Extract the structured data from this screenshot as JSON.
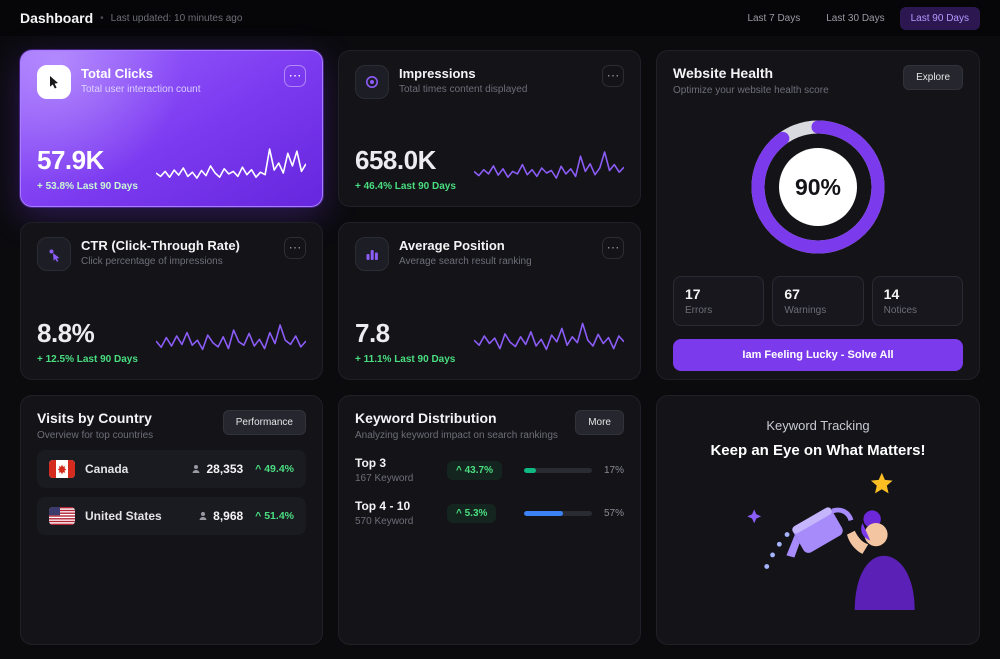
{
  "colors": {
    "accent": "#7c3aed",
    "accent_light": "#a78bfa",
    "positive": "#4ade80",
    "spark": "#8b5cf6",
    "spark_highlight": "#ffffff"
  },
  "icons": {
    "ellipsis": "⋯",
    "dot": "•"
  },
  "header": {
    "title": "Dashboard",
    "updated": "Last updated: 10 minutes ago",
    "ranges": [
      {
        "label": "Last 7 Days"
      },
      {
        "label": "Last 30 Days"
      },
      {
        "label": "Last 90 Days"
      }
    ]
  },
  "stat_cards": [
    {
      "title": "Total Clicks",
      "subtitle": "Total user interaction count",
      "value": "57.9K",
      "delta": "+ 53.8% Last 90 Days",
      "icon": "cursor-click-icon",
      "spark": [
        38,
        30,
        42,
        28,
        45,
        33,
        50,
        30,
        40,
        26,
        44,
        32,
        55,
        38,
        28,
        48,
        36,
        42,
        30,
        52,
        34,
        46,
        28,
        40,
        34,
        95,
        45,
        62,
        38,
        85,
        55,
        90,
        42,
        60
      ]
    },
    {
      "title": "Impressions",
      "subtitle": "Total times content displayed",
      "value": "658.0K",
      "delta": "+ 46.4% Last 90 Days",
      "icon": "disc-icon",
      "spark": [
        42,
        32,
        46,
        36,
        55,
        33,
        48,
        28,
        42,
        36,
        58,
        34,
        46,
        30,
        50,
        38,
        44,
        26,
        54,
        36,
        48,
        30,
        78,
        42,
        60,
        34,
        50,
        88,
        44,
        58,
        40,
        52
      ]
    },
    {
      "title": "CTR (Click-Through Rate)",
      "subtitle": "Click percentage of impressions",
      "value": "8.8%",
      "delta": "+ 12.5% Last 90 Days",
      "icon": "pointer-icon",
      "spark": [
        50,
        35,
        58,
        38,
        62,
        42,
        70,
        40,
        52,
        30,
        64,
        46,
        36,
        60,
        32,
        76,
        48,
        40,
        68,
        38,
        54,
        32,
        70,
        44,
        88,
        52,
        42,
        62,
        36,
        50
      ]
    },
    {
      "title": "Average Position",
      "subtitle": "Average search result ranking",
      "value": "7.8",
      "delta": "+ 11.1% Last 90 Days",
      "icon": "bar-chart-icon",
      "spark": [
        52,
        40,
        62,
        44,
        57,
        32,
        67,
        47,
        37,
        60,
        42,
        72,
        38,
        54,
        30,
        64,
        48,
        80,
        40,
        60,
        46,
        92,
        52,
        38,
        66,
        44,
        58,
        32,
        62,
        48
      ]
    }
  ],
  "website_health": {
    "title": "Website Health",
    "subtitle": "Optimize your website health score",
    "explore_label": "Explore",
    "score": 90,
    "score_label": "90%",
    "stats": [
      {
        "value": "17",
        "label": "Errors"
      },
      {
        "value": "67",
        "label": "Warnings"
      },
      {
        "value": "14",
        "label": "Notices"
      }
    ],
    "cta_label": "Iam Feeling Lucky - Solve All"
  },
  "visits_by_country": {
    "title": "Visits by Country",
    "subtitle": "Overview for top countries",
    "action_label": "Performance",
    "rows": [
      {
        "country": "Canada",
        "visits": "28,353",
        "delta": "^ 49.4%"
      },
      {
        "country": "United States",
        "visits": "8,968",
        "delta": "^ 51.4%"
      }
    ]
  },
  "keyword_distribution": {
    "title": "Keyword Distribution",
    "subtitle": "Analyzing keyword impact on search rankings",
    "action_label": "More",
    "rows": [
      {
        "label": "Top 3",
        "sub": "167 Keyword",
        "delta": "^ 43.7%",
        "pct": 17,
        "pct_label": "17%",
        "color": "#10b981"
      },
      {
        "label": "Top 4 - 10",
        "sub": "570 Keyword",
        "delta": "^ 5.3%",
        "pct": 57,
        "pct_label": "57%",
        "color": "#3b82f6"
      }
    ]
  },
  "keyword_tracking": {
    "eyebrow": "Keyword Tracking",
    "headline": "Keep an Eye on What Matters!"
  }
}
